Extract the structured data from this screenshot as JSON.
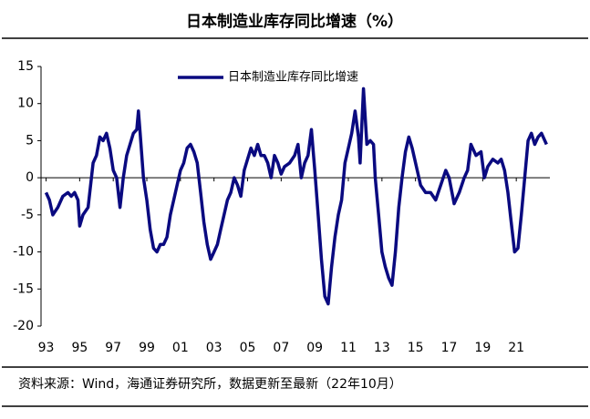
{
  "chart_data": {
    "type": "line",
    "title": "日本制造业库存同比增速（%）",
    "source": "资料来源：Wind，海通证券研究所，数据更新至最新（22年10月）",
    "legend": "top-center",
    "xlim": [
      1992.7,
      2023.0
    ],
    "xticks": [
      {
        "value": 1993,
        "label": "93"
      },
      {
        "value": 1995,
        "label": "95"
      },
      {
        "value": 1997,
        "label": "97"
      },
      {
        "value": 1999,
        "label": "99"
      },
      {
        "value": 2001,
        "label": "01"
      },
      {
        "value": 2003,
        "label": "03"
      },
      {
        "value": 2005,
        "label": "05"
      },
      {
        "value": 2007,
        "label": "07"
      },
      {
        "value": 2009,
        "label": "09"
      },
      {
        "value": 2011,
        "label": "11"
      },
      {
        "value": 2013,
        "label": "13"
      },
      {
        "value": 2015,
        "label": "15"
      },
      {
        "value": 2017,
        "label": "17"
      },
      {
        "value": 2019,
        "label": "19"
      },
      {
        "value": 2021,
        "label": "21"
      }
    ],
    "ylim": [
      -20,
      15
    ],
    "yticks": [
      -20,
      -15,
      -10,
      -5,
      0,
      5,
      10,
      15
    ],
    "x": [
      1993.0,
      1993.2,
      1993.4,
      1993.7,
      1994.0,
      1994.3,
      1994.5,
      1994.7,
      1994.9,
      1995.0,
      1995.2,
      1995.5,
      1995.8,
      1996.0,
      1996.2,
      1996.4,
      1996.6,
      1996.8,
      1997.0,
      1997.2,
      1997.4,
      1997.6,
      1997.8,
      1998.0,
      1998.2,
      1998.4,
      1998.5,
      1998.6,
      1998.8,
      1999.0,
      1999.2,
      1999.4,
      1999.6,
      1999.8,
      2000.0,
      2000.2,
      2000.4,
      2000.6,
      2000.8,
      2001.0,
      2001.2,
      2001.4,
      2001.6,
      2001.8,
      2002.0,
      2002.2,
      2002.4,
      2002.6,
      2002.8,
      2003.0,
      2003.2,
      2003.4,
      2003.6,
      2003.8,
      2004.0,
      2004.2,
      2004.4,
      2004.6,
      2004.8,
      2005.0,
      2005.2,
      2005.4,
      2005.6,
      2005.8,
      2006.0,
      2006.2,
      2006.4,
      2006.6,
      2006.8,
      2007.0,
      2007.2,
      2007.5,
      2007.8,
      2008.0,
      2008.2,
      2008.4,
      2008.6,
      2008.8,
      2009.0,
      2009.2,
      2009.4,
      2009.6,
      2009.8,
      2010.0,
      2010.2,
      2010.4,
      2010.6,
      2010.8,
      2011.0,
      2011.2,
      2011.4,
      2011.6,
      2011.7,
      2011.9,
      2012.1,
      2012.3,
      2012.5,
      2012.6,
      2012.8,
      2013.0,
      2013.2,
      2013.4,
      2013.6,
      2013.8,
      2014.0,
      2014.2,
      2014.4,
      2014.6,
      2014.8,
      2015.0,
      2015.3,
      2015.6,
      2015.9,
      2016.2,
      2016.5,
      2016.8,
      2017.0,
      2017.3,
      2017.6,
      2017.9,
      2018.1,
      2018.3,
      2018.6,
      2018.9,
      2019.1,
      2019.3,
      2019.6,
      2019.9,
      2020.1,
      2020.3,
      2020.5,
      2020.7,
      2020.9,
      2021.1,
      2021.3,
      2021.5,
      2021.7,
      2021.9,
      2022.1,
      2022.3,
      2022.5,
      2022.8
    ],
    "series": [
      {
        "name": "日本制造业库存同比增速",
        "color": "#0a0a80",
        "values": [
          -2,
          -3,
          -5,
          -4,
          -2.5,
          -2,
          -2.5,
          -2,
          -3,
          -6.5,
          -5,
          -4,
          2,
          3,
          5.5,
          5,
          6,
          4,
          1,
          0,
          -4,
          0,
          3,
          4.5,
          6,
          6.5,
          9,
          6,
          0,
          -3,
          -7,
          -9.5,
          -10,
          -9,
          -9,
          -8,
          -5,
          -3,
          -1,
          1,
          2,
          4,
          4.5,
          3.5,
          2,
          -2,
          -6,
          -9,
          -11,
          -10,
          -9,
          -7,
          -5,
          -3,
          -2,
          0,
          -1,
          -2.5,
          1,
          2.5,
          4,
          3,
          4.5,
          3,
          3,
          2,
          0,
          3,
          2,
          0.5,
          1.5,
          2,
          3,
          4.5,
          0,
          2,
          3,
          6.5,
          1,
          -5,
          -11,
          -16,
          -17,
          -12,
          -8,
          -5,
          -3,
          2,
          4,
          6,
          9,
          5.5,
          2,
          12,
          4.5,
          5,
          4.5,
          0,
          -5,
          -10,
          -12,
          -13.5,
          -14.5,
          -10,
          -4,
          0,
          3.5,
          5.5,
          4,
          2,
          -1,
          -2,
          -2,
          -3,
          -1,
          1,
          0,
          -3.5,
          -2,
          0,
          1,
          4.5,
          3,
          3.5,
          0,
          1.5,
          2.5,
          2,
          2.5,
          1,
          -2,
          -6,
          -10,
          -9.5,
          -5,
          0,
          5,
          6,
          4.5,
          5.5,
          6,
          4.5
        ]
      }
    ]
  }
}
